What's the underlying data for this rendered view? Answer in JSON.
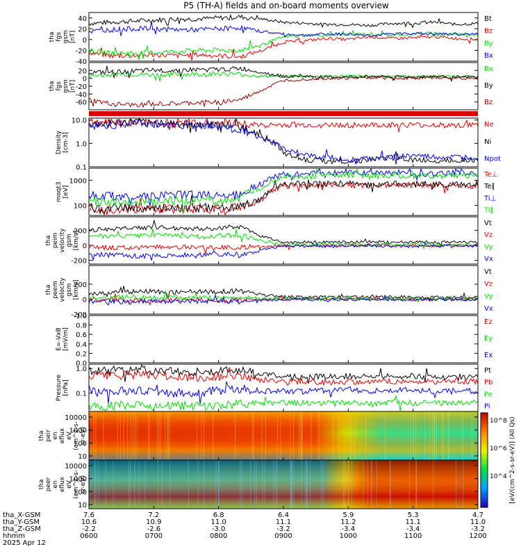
{
  "title": "P5 (TH-A) fields and on-board moments overview",
  "colors": {
    "black": "#000000",
    "red": "#e00000",
    "green": "#00dd00",
    "blue": "#0000ee",
    "darkred": "#990000"
  },
  "footer": {
    "rows": [
      {
        "label": "tha_X-GSM",
        "values": [
          "7.6",
          "7.2",
          "6.8",
          "6.4",
          "5.9",
          "5.3",
          "4.7"
        ]
      },
      {
        "label": "tha_Y-GSM",
        "values": [
          "10.6",
          "10.9",
          "11.0",
          "11.1",
          "11.2",
          "11.1",
          "11.0"
        ]
      },
      {
        "label": "tha_Z-GSM",
        "values": [
          "-2.2",
          "-2.6",
          "-3.0",
          "-3.2",
          "-3.4",
          "-3.4",
          "-3.2"
        ]
      },
      {
        "label": "hhmm",
        "values": [
          "0600",
          "0700",
          "0800",
          "0900",
          "1000",
          "1100",
          "1200"
        ]
      }
    ],
    "date": "2025 Apr 12"
  },
  "colorbar_label": "[eV/(cm^2-s-sr-eV)] (All Qs)",
  "chart_data": [
    {
      "type": "line",
      "ylabel": [
        "tha",
        "fgs",
        "gsm",
        "[nT]"
      ],
      "ylim": [
        -40,
        50
      ],
      "ticks": [
        "40",
        "20",
        "0",
        "-20",
        "-40"
      ],
      "series": [
        {
          "name": "Bt",
          "color": "black",
          "values": [
            30,
            32,
            34,
            36,
            38,
            38,
            40,
            42,
            38,
            32,
            30,
            28,
            28,
            26,
            30,
            30,
            32,
            28,
            30
          ]
        },
        {
          "name": "Bz",
          "color": "red",
          "values": [
            -25,
            -30,
            -30,
            -28,
            -30,
            -28,
            -30,
            -32,
            -20,
            -5,
            -2,
            2,
            0,
            5,
            2,
            3,
            5,
            2,
            0
          ]
        },
        {
          "name": "By",
          "color": "green",
          "values": [
            -20,
            -25,
            -25,
            -24,
            -22,
            -20,
            -20,
            -20,
            -10,
            5,
            8,
            8,
            10,
            10,
            8,
            10,
            12,
            10,
            10
          ]
        },
        {
          "name": "Bx",
          "color": "blue",
          "values": [
            15,
            18,
            20,
            20,
            18,
            18,
            20,
            22,
            15,
            10,
            8,
            10,
            10,
            8,
            10,
            12,
            10,
            10,
            10
          ]
        }
      ]
    },
    {
      "type": "line",
      "ylabel": [
        "tha",
        "fgs",
        "gsm",
        "[nT]"
      ],
      "ylim": [
        -80,
        40
      ],
      "ticks": [
        "20",
        "0",
        "-20",
        "-40",
        "-60"
      ],
      "series": [
        {
          "name": "Bx",
          "color": "green",
          "values": [
            5,
            10,
            10,
            8,
            10,
            10,
            12,
            10,
            5,
            5,
            5,
            5,
            5,
            5,
            5,
            5,
            5,
            5,
            5
          ]
        },
        {
          "name": "By",
          "color": "black",
          "values": [
            15,
            15,
            18,
            20,
            20,
            22,
            22,
            25,
            15,
            5,
            5,
            3,
            3,
            5,
            5,
            3,
            5,
            3,
            3
          ]
        },
        {
          "name": "Bz",
          "color": "darkred",
          "values": [
            -55,
            -65,
            -68,
            -66,
            -65,
            -62,
            -60,
            -55,
            -30,
            -5,
            -2,
            0,
            0,
            2,
            0,
            0,
            2,
            0,
            0
          ]
        }
      ]
    },
    {
      "type": "line",
      "ylabel": [
        "Density",
        "[cm-3]"
      ],
      "scale": "log",
      "ylim": [
        0.1,
        12
      ],
      "ticks": [
        "10.0",
        "1.0",
        "0.1"
      ],
      "series": [
        {
          "name": "Ne",
          "color": "red",
          "values": [
            8,
            8,
            8,
            8,
            7,
            8,
            8,
            7,
            6,
            6,
            6,
            6,
            6,
            6,
            6,
            6,
            6,
            6,
            6
          ]
        },
        {
          "name": "Ni",
          "color": "black",
          "values": [
            6,
            7,
            8,
            7,
            7,
            6,
            6,
            5,
            2,
            0.4,
            0.2,
            0.18,
            0.17,
            0.2,
            0.25,
            0.2,
            0.18,
            0.2,
            0.2
          ]
        },
        {
          "name": "Npot",
          "color": "blue",
          "values": [
            5,
            6,
            7,
            7,
            6,
            6,
            5,
            4,
            1.5,
            0.6,
            0.3,
            0.25,
            0.2,
            0.22,
            0.25,
            0.3,
            0.25,
            0.25,
            0.25
          ]
        }
      ]
    },
    {
      "type": "line",
      "ylabel": [
        "moqt3",
        "[eV]"
      ],
      "scale": "log",
      "ylim": [
        40,
        3000
      ],
      "ticks": [
        "1000",
        "100"
      ],
      "series": [
        {
          "name": "Te⊥",
          "color": "red",
          "values": [
            80,
            70,
            70,
            70,
            70,
            70,
            75,
            80,
            150,
            600,
            600,
            650,
            650,
            600,
            700,
            650,
            650,
            600,
            600
          ]
        },
        {
          "name": "Te∥",
          "color": "black",
          "values": [
            90,
            80,
            80,
            80,
            80,
            80,
            85,
            90,
            160,
            700,
            700,
            700,
            750,
            650,
            750,
            700,
            700,
            650,
            700
          ]
        },
        {
          "name": "Ti⊥",
          "color": "blue",
          "values": [
            250,
            230,
            230,
            230,
            250,
            260,
            260,
            280,
            700,
            1800,
            1800,
            1900,
            2000,
            1900,
            2000,
            1900,
            1800,
            1900,
            1900
          ]
        },
        {
          "name": "Ti∥",
          "color": "green",
          "values": [
            150,
            140,
            140,
            140,
            150,
            160,
            160,
            170,
            500,
            1400,
            1400,
            1500,
            1600,
            1500,
            1500,
            1500,
            1400,
            1500,
            1500
          ]
        }
      ]
    },
    {
      "type": "line",
      "ylabel": [
        "tha",
        "peim",
        "velocity",
        "gsm",
        "[km/s]"
      ],
      "ylim": [
        -250,
        380
      ],
      "ticks": [
        "200",
        "0",
        "-200"
      ],
      "series": [
        {
          "name": "Vt",
          "color": "black",
          "values": [
            200,
            220,
            230,
            240,
            230,
            220,
            230,
            250,
            120,
            40,
            40,
            45,
            40,
            50,
            40,
            45,
            40,
            40,
            45
          ]
        },
        {
          "name": "Vz",
          "color": "red",
          "values": [
            -20,
            -30,
            -30,
            -20,
            -30,
            -20,
            -30,
            -30,
            -10,
            0,
            0,
            -5,
            0,
            5,
            0,
            -5,
            0,
            0,
            0
          ]
        },
        {
          "name": "Vy",
          "color": "green",
          "values": [
            120,
            130,
            130,
            140,
            130,
            120,
            130,
            140,
            60,
            10,
            10,
            15,
            10,
            5,
            10,
            15,
            10,
            10,
            10
          ]
        },
        {
          "name": "Vx",
          "color": "blue",
          "values": [
            -120,
            -130,
            -140,
            -140,
            -130,
            -120,
            -130,
            -140,
            -60,
            -10,
            -10,
            -15,
            -10,
            -5,
            -10,
            -15,
            -10,
            -10,
            -10
          ]
        }
      ]
    },
    {
      "type": "line",
      "ylabel": [
        "tha",
        "peem",
        "velocity",
        "gsm",
        "[km/s]"
      ],
      "ylim": [
        -200,
        450
      ],
      "ticks": [
        "200",
        "0",
        "-200"
      ],
      "series": [
        {
          "name": "Vt",
          "color": "black",
          "values": [
            80,
            90,
            100,
            100,
            90,
            100,
            100,
            110,
            60,
            30,
            30,
            30,
            30,
            30,
            30,
            30,
            30,
            30,
            30
          ]
        },
        {
          "name": "Vz",
          "color": "red",
          "values": [
            -10,
            -10,
            -20,
            -10,
            -10,
            -10,
            -15,
            -10,
            -5,
            0,
            0,
            0,
            0,
            0,
            0,
            0,
            0,
            0,
            0
          ]
        },
        {
          "name": "Vy",
          "color": "green",
          "values": [
            20,
            20,
            25,
            20,
            20,
            20,
            25,
            30,
            10,
            5,
            5,
            5,
            5,
            5,
            5,
            5,
            5,
            5,
            5
          ]
        },
        {
          "name": "Vx",
          "color": "blue",
          "values": [
            -30,
            -30,
            -35,
            -30,
            -30,
            -30,
            -35,
            -35,
            -15,
            -5,
            -5,
            -5,
            -5,
            -5,
            -5,
            -5,
            -5,
            -5,
            -5
          ]
        }
      ]
    },
    {
      "type": "line",
      "ylabel": [
        "E=-VxB",
        "[mV/m]"
      ],
      "ylim": [
        0,
        1
      ],
      "ticks": [
        "1.0",
        "0.8",
        "0.6",
        "0.4",
        "0.2",
        "0.0"
      ],
      "series": [
        {
          "name": "Ez",
          "color": "red",
          "values": []
        },
        {
          "name": "Ey",
          "color": "green",
          "values": []
        },
        {
          "name": "Ex",
          "color": "blue",
          "values": []
        }
      ]
    },
    {
      "type": "line",
      "ylabel": [
        "Pressure",
        "[nPa]"
      ],
      "scale": "log",
      "ylim": [
        0.018,
        1.5
      ],
      "ticks": [
        "1.0",
        "0.1"
      ],
      "series": [
        {
          "name": "Pt",
          "color": "black",
          "values": [
            0.8,
            0.85,
            0.85,
            0.8,
            0.8,
            0.75,
            0.8,
            0.9,
            0.6,
            0.45,
            0.45,
            0.5,
            0.5,
            0.45,
            0.5,
            0.5,
            0.45,
            0.45,
            0.45
          ]
        },
        {
          "name": "Pb",
          "color": "red",
          "values": [
            0.5,
            0.5,
            0.55,
            0.5,
            0.45,
            0.45,
            0.45,
            0.5,
            0.35,
            0.3,
            0.3,
            0.25,
            0.3,
            0.28,
            0.3,
            0.3,
            0.3,
            0.3,
            0.3
          ]
        },
        {
          "name": "Pe",
          "color": "green",
          "values": [
            0.03,
            0.03,
            0.035,
            0.03,
            0.03,
            0.03,
            0.03,
            0.035,
            0.04,
            0.04,
            0.04,
            0.04,
            0.04,
            0.035,
            0.04,
            0.04,
            0.04,
            0.04,
            0.04
          ]
        },
        {
          "name": "Pi",
          "color": "blue",
          "values": [
            0.15,
            0.12,
            0.12,
            0.12,
            0.1,
            0.1,
            0.12,
            0.15,
            0.12,
            0.12,
            0.12,
            0.13,
            0.14,
            0.12,
            0.13,
            0.13,
            0.12,
            0.12,
            0.12
          ]
        }
      ]
    },
    {
      "type": "heatmap",
      "ylabel": [
        "tha",
        "peir",
        "en",
        "eflux",
        "eV",
        "(cm^2-s-",
        "sr-eV)"
      ],
      "ticks": [
        "10000",
        "1000",
        "100",
        "10"
      ],
      "note": "ion energy flux spectrogram; intense red 100-10000 eV before ~0900, broad green/cyan after"
    },
    {
      "type": "heatmap",
      "ylabel": [
        "tha",
        "peer",
        "en",
        "eflux",
        "eV",
        "(cm^2-s-",
        "sr-eV)"
      ],
      "ticks": [
        "10000",
        "1000",
        "100",
        "10"
      ],
      "note": "electron energy flux spectrogram; red below ~100 eV before ~0900, red/orange above 300 eV after"
    }
  ],
  "colorbar_ticks": [
    "10^8",
    "10^6",
    "10^4"
  ]
}
